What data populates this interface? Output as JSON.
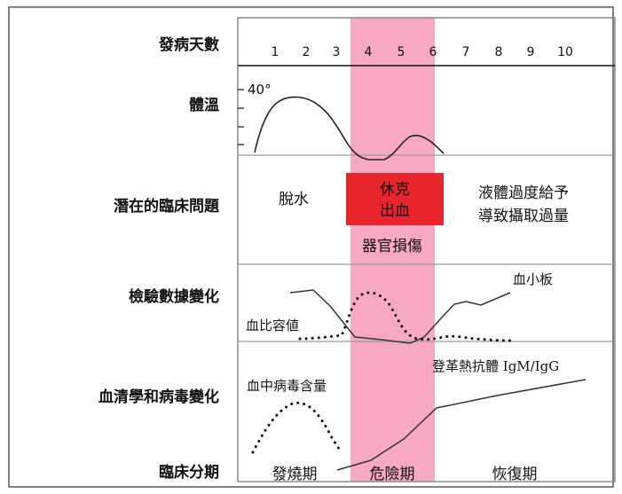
{
  "row_labels": {
    "days": "發病天數",
    "temperature": "體溫",
    "problems": "潛在的臨床問題",
    "labs": "檢驗數據變化",
    "serology": "血清學和病毒變化",
    "phases": "臨床分期"
  },
  "days": [
    "1",
    "2",
    "3",
    "4",
    "5",
    "6",
    "7",
    "8",
    "9",
    "10"
  ],
  "temperature_tick": "40°",
  "problems": {
    "dehydration": "脫水",
    "shock_line1": "休克",
    "shock_line2": "出血",
    "organ_damage": "器官損傷",
    "fluid_line1": "液體過度給予",
    "fluid_line2": "導致攝取過量"
  },
  "labs": {
    "platelets": "血小板",
    "hematocrit": "血比容値"
  },
  "serology": {
    "viremia": "血中病毒含量",
    "antibody": "登革熱抗體 IgM/IgG"
  },
  "phases": {
    "febrile": "發燒期",
    "critical": "危險期",
    "recovery": "恢復期"
  },
  "colors": {
    "critical_band": "#f7a8c3",
    "shock_box": "#e8242c",
    "shock_text": "#ffffff",
    "border": "#333333"
  }
}
